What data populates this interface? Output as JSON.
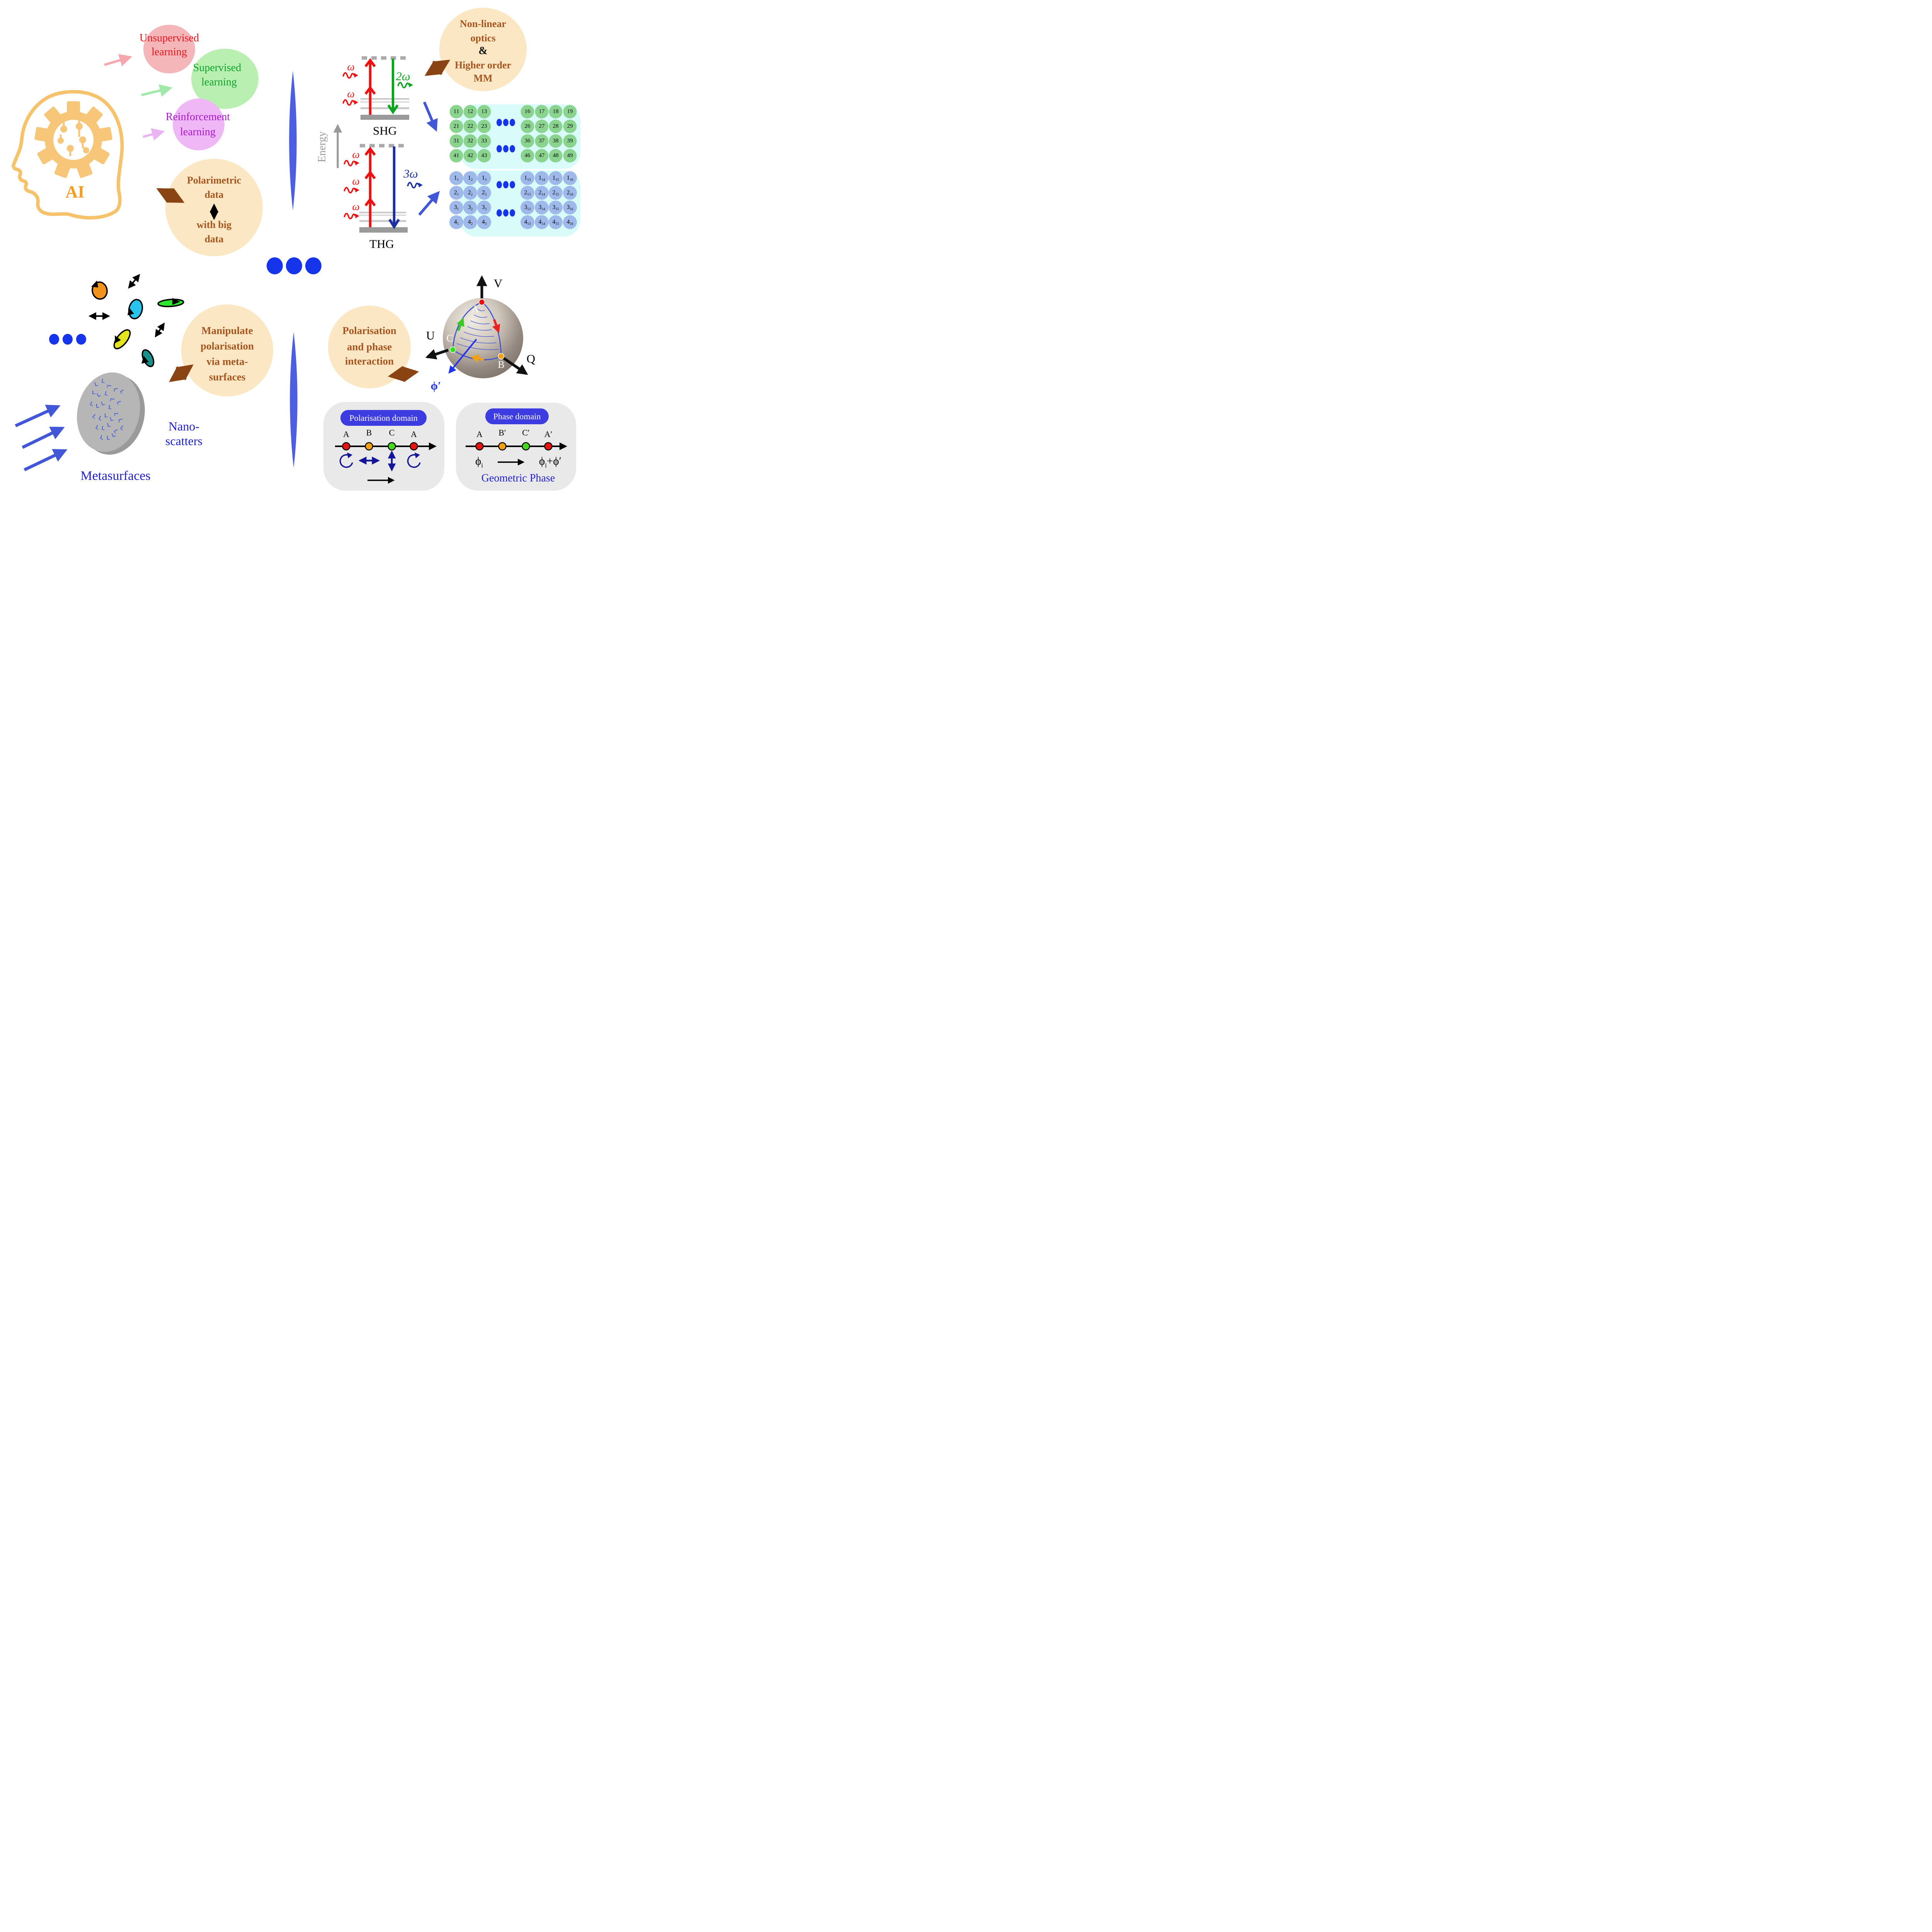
{
  "colors": {
    "accent_cream": "#fbe7c4",
    "accent_brown_text": "#a5551d",
    "accent_brown_arrow": "#8a4413",
    "royal_blue": "#4157d8",
    "deep_blue_dot": "#1634ea",
    "divider_blue": "#4c5fe2",
    "red": "#e8151c",
    "green": "#0da32b",
    "purple": "#a718ce",
    "orange_ai": "#f59b1f",
    "matrix_bg": "#d9fbfa",
    "matrix_green": "#8bd48f",
    "matrix_blue": "#9fb9ea",
    "domain_gray": "#e9e9e9",
    "pill_blue": "#3c3ce0",
    "navy_symbol": "#15159a",
    "shg_red": "#ee1111",
    "shg_green": "#0ca521",
    "thg_blue": "#1c2fa0",
    "gray_axis": "#999999"
  },
  "icons": {
    "ai_head": "ai-head-gear-circuit-icon",
    "photon": "photon-wavy-arrow-icon",
    "metasurface": "metasurface-disk-icon",
    "poincare_sphere": "poincare-sphere-icon",
    "ellipsis": "three-dots-ellipsis-icon"
  },
  "learning": {
    "unsupervised": {
      "line1": "Unsupervised",
      "line2": "learning"
    },
    "supervised": {
      "line1": "Supervised",
      "line2": "learning"
    },
    "reinforcement": {
      "line1": "Reinforcement",
      "line2": "learning"
    }
  },
  "ai_label": "AI",
  "polarimetric": {
    "line1": "Polarimetric",
    "line2": "data",
    "line3": "with big",
    "line4": "data"
  },
  "energy_axis": "Energy",
  "shg": {
    "label": "SHG",
    "pump1": "ω",
    "pump2": "ω",
    "out": "2ω"
  },
  "thg": {
    "label": "THG",
    "pump1": "ω",
    "pump2": "ω",
    "pump3": "ω",
    "out": "3ω"
  },
  "nonlinear_bubble": {
    "line1": "Non-linear",
    "line2": "optics",
    "amp": "&",
    "line3": "Higher order",
    "line4": "MM"
  },
  "mueller_green": {
    "left": [
      [
        "11",
        "12",
        "13"
      ],
      [
        "21",
        "22",
        "23"
      ],
      [
        "31",
        "32",
        "33"
      ],
      [
        "41",
        "42",
        "43"
      ]
    ],
    "right": [
      [
        "16",
        "17",
        "18",
        "19"
      ],
      [
        "26",
        "27",
        "28",
        "29"
      ],
      [
        "36",
        "37",
        "38",
        "39"
      ],
      [
        "46",
        "47",
        "48",
        "49"
      ]
    ]
  },
  "mueller_blue": {
    "left": [
      [
        [
          "1",
          "1"
        ],
        [
          "1",
          "2"
        ],
        [
          "1",
          "3"
        ]
      ],
      [
        [
          "2",
          "1"
        ],
        [
          "2",
          "2"
        ],
        [
          "2",
          "3"
        ]
      ],
      [
        [
          "3",
          "1"
        ],
        [
          "3",
          "2"
        ],
        [
          "3",
          "3"
        ]
      ],
      [
        [
          "4",
          "1"
        ],
        [
          "4",
          "2"
        ],
        [
          "4",
          "3"
        ]
      ]
    ],
    "right": [
      [
        [
          "1",
          "13"
        ],
        [
          "1",
          "14"
        ],
        [
          "1",
          "15"
        ],
        [
          "1",
          "16"
        ]
      ],
      [
        [
          "2",
          "13"
        ],
        [
          "2",
          "14"
        ],
        [
          "2",
          "15"
        ],
        [
          "2",
          "16"
        ]
      ],
      [
        [
          "3",
          "13"
        ],
        [
          "3",
          "14"
        ],
        [
          "3",
          "15"
        ],
        [
          "3",
          "16"
        ]
      ],
      [
        [
          "4",
          "13"
        ],
        [
          "4",
          "14"
        ],
        [
          "4",
          "15"
        ],
        [
          "4",
          "16"
        ]
      ]
    ]
  },
  "manipulate_bubble": {
    "line1": "Manipulate",
    "line2": "polarisation",
    "line3": "via meta-",
    "line4": "surfaces"
  },
  "nano_scatters": {
    "line1": "Nano-",
    "line2": "scatters"
  },
  "metasurfaces_label": "Metasurfaces",
  "interaction_bubble": {
    "line1": "Polarisation",
    "line2": "and phase",
    "line3": "interaction"
  },
  "sphere": {
    "axis_v": "V",
    "axis_u": "U",
    "axis_q": "Q",
    "point_a": "A",
    "point_b": "B",
    "point_c": "C",
    "phase": "ϕ′"
  },
  "polarisation_domain": {
    "title": "Polarisation domain",
    "points": [
      {
        "label": "A",
        "color": "#e8150f"
      },
      {
        "label": "B",
        "color": "#f2a113"
      },
      {
        "label": "C",
        "color": "#46d81e"
      },
      {
        "label": "A",
        "color": "#e8150f"
      }
    ]
  },
  "phase_domain": {
    "title": "Phase domain",
    "points": [
      {
        "label": "A",
        "color": "#e8150f"
      },
      {
        "label": "B′",
        "color": "#f2a113"
      },
      {
        "label": "C′",
        "color": "#46d81e"
      },
      {
        "label": "A′",
        "color": "#e8150f"
      }
    ],
    "phi": "ϕ",
    "sub_i": "i",
    "plus": "+",
    "phi_prime": "ϕ′",
    "caption": "Geometric Phase"
  }
}
